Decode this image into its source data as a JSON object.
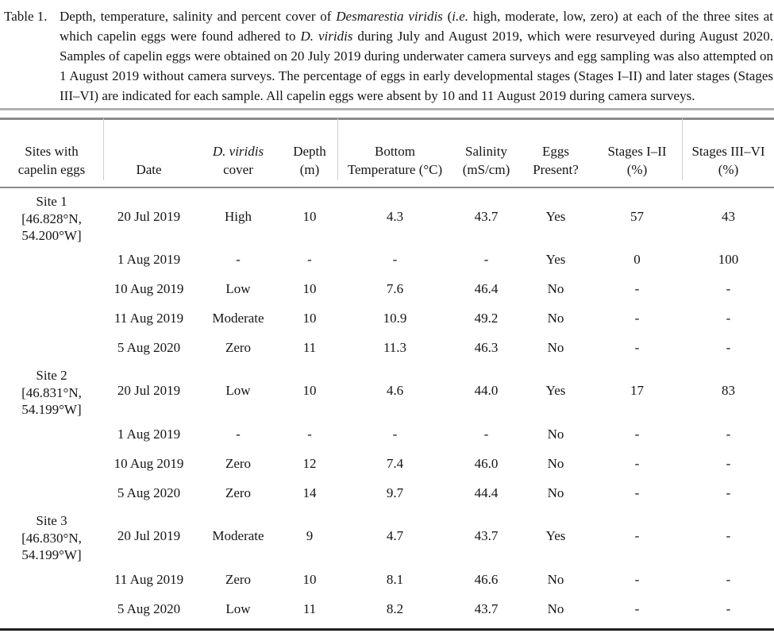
{
  "caption": {
    "label": "Table 1.",
    "segments": [
      {
        "t": "Depth, temperature, salinity and percent cover of "
      },
      {
        "t": "Desmarestia viridis",
        "i": true
      },
      {
        "t": " ("
      },
      {
        "t": "i.e.",
        "i": true
      },
      {
        "t": " high, moderate, low, zero) at each of the three sites at which capelin eggs were found adhered to "
      },
      {
        "t": "D. viridis",
        "i": true
      },
      {
        "t": " during July and August 2019, which were resurveyed during August 2020. Samples of capelin eggs were obtained on 20 July 2019 during underwater camera surveys and egg sampling was also attempted on 1 August 2019 without camera surveys. The percentage of eggs in early developmental stages (Stages I–II) and later stages (Stages III–VI) are indicated for each sample. All capelin eggs were absent by 10 and 11 August 2019 during camera surveys."
      }
    ]
  },
  "table": {
    "columns": [
      {
        "lines": [
          {
            "t": "Sites with"
          },
          {
            "t": "capelin eggs"
          }
        ]
      },
      {
        "lines": [
          {
            "t": "Date"
          }
        ]
      },
      {
        "lines": [
          {
            "t": "D. viridis",
            "i": true
          },
          {
            "t": "cover"
          }
        ]
      },
      {
        "lines": [
          {
            "t": "Depth"
          },
          {
            "t": "(m)"
          }
        ]
      },
      {
        "lines": [
          {
            "t": "Bottom"
          },
          {
            "t": "Temperature (°C)"
          }
        ]
      },
      {
        "lines": [
          {
            "t": "Salinity"
          },
          {
            "t": "(mS/cm)"
          }
        ]
      },
      {
        "lines": [
          {
            "t": "Eggs"
          },
          {
            "t": "Present?"
          }
        ]
      },
      {
        "lines": [
          {
            "t": "Stages I–II"
          },
          {
            "t": "(%)"
          }
        ]
      },
      {
        "lines": [
          {
            "t": "Stages III–VI"
          },
          {
            "t": "(%)"
          }
        ]
      }
    ],
    "groups": [
      {
        "site_lines": [
          "Site 1",
          "[46.828°N,",
          "54.200°W]"
        ],
        "rows": [
          [
            "20 Jul 2019",
            "High",
            "10",
            "4.3",
            "43.7",
            "Yes",
            "57",
            "43"
          ],
          [
            "1 Aug 2019",
            "-",
            "-",
            "-",
            "-",
            "Yes",
            "0",
            "100"
          ],
          [
            "10 Aug 2019",
            "Low",
            "10",
            "7.6",
            "46.4",
            "No",
            "-",
            "-"
          ],
          [
            "11 Aug 2019",
            "Moderate",
            "10",
            "10.9",
            "49.2",
            "No",
            "-",
            "-"
          ],
          [
            "5 Aug 2020",
            "Zero",
            "11",
            "11.3",
            "46.3",
            "No",
            "-",
            "-"
          ]
        ]
      },
      {
        "site_lines": [
          "Site 2",
          "[46.831°N,",
          "54.199°W]"
        ],
        "rows": [
          [
            "20 Jul 2019",
            "Low",
            "10",
            "4.6",
            "44.0",
            "Yes",
            "17",
            "83"
          ],
          [
            "1 Aug 2019",
            "-",
            "-",
            "-",
            "-",
            "No",
            "-",
            "-"
          ],
          [
            "10 Aug 2019",
            "Zero",
            "12",
            "7.4",
            "46.0",
            "No",
            "-",
            "-"
          ],
          [
            "5 Aug 2020",
            "Zero",
            "14",
            "9.7",
            "44.4",
            "No",
            "-",
            "-"
          ]
        ]
      },
      {
        "site_lines": [
          "Site 3",
          "[46.830°N,",
          "54.199°W]"
        ],
        "rows": [
          [
            "20 Jul 2019",
            "Moderate",
            "9",
            "4.7",
            "43.7",
            "Yes",
            "-",
            "-"
          ],
          [
            "11 Aug 2019",
            "Zero",
            "10",
            "8.1",
            "46.6",
            "No",
            "-",
            "-"
          ],
          [
            "5 Aug 2020",
            "Low",
            "11",
            "8.2",
            "43.7",
            "No",
            "-",
            "-"
          ]
        ]
      }
    ]
  },
  "colors": {
    "rule_light": "#b2b2b2",
    "rule_mid": "#8b8b8b",
    "rule_dark": "#1f1f1f",
    "text": "#141414"
  }
}
